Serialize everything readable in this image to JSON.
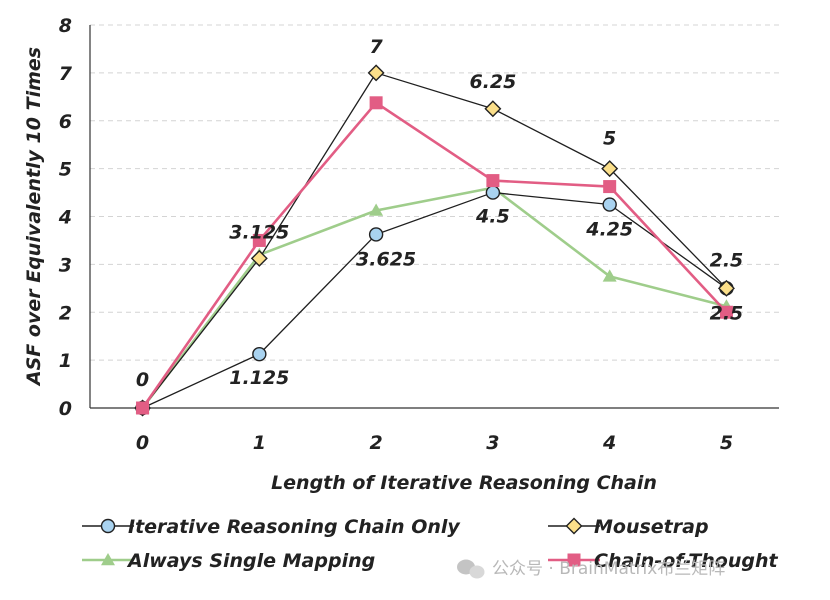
{
  "chart_data": {
    "type": "line",
    "title": "",
    "xlabel": "Length of Iterative Reasoning Chain",
    "ylabel": "ASF over  Equivalently 10 Times",
    "x": [
      0,
      1,
      2,
      3,
      4,
      5
    ],
    "xticks": [
      "0",
      "1",
      "2",
      "3",
      "4",
      "5"
    ],
    "yticks": [
      "0",
      "1",
      "2",
      "3",
      "4",
      "5",
      "6",
      "7",
      "8"
    ],
    "xlim": [
      -0.45,
      5.45
    ],
    "ylim": [
      0,
      8
    ],
    "grid": "horizontal dashed",
    "legend_position": "bottom",
    "series": [
      {
        "name": "Iterative Reasoning Chain Only",
        "values": [
          0,
          1.125,
          3.625,
          4.5,
          4.25,
          2.5
        ],
        "color": "#1f1f1f",
        "marker": "circle",
        "marker_fill": "#a9d3f0"
      },
      {
        "name": "Mousetrap",
        "values": [
          0,
          3.125,
          7,
          6.25,
          5,
          2.5
        ],
        "color": "#1f1f1f",
        "marker": "diamond",
        "marker_fill": "#fbdf8a"
      },
      {
        "name": "Always Single Mapping",
        "values": [
          0,
          3.2,
          4.125,
          4.6,
          2.75,
          2.125
        ],
        "color": "#9fcd8b",
        "marker": "triangle",
        "marker_fill": "#9fcd8b"
      },
      {
        "name": "Chain-of-Thought",
        "values": [
          0,
          3.5,
          6.375,
          4.75,
          4.625,
          2.0
        ],
        "color": "#e25d84",
        "marker": "square",
        "marker_fill": "#e25d84"
      }
    ],
    "annotations": [
      {
        "text": "0",
        "x": 0,
        "y": 0
      },
      {
        "text": "1.125",
        "x": 1,
        "y": 1.125
      },
      {
        "text": "3.125",
        "x": 1,
        "y": 3.125
      },
      {
        "text": "7",
        "x": 2,
        "y": 7
      },
      {
        "text": "3.625",
        "x": 2,
        "y": 3.625
      },
      {
        "text": "6.25",
        "x": 3,
        "y": 6.25
      },
      {
        "text": "4.5",
        "x": 3,
        "y": 4.5
      },
      {
        "text": "5",
        "x": 4,
        "y": 5
      },
      {
        "text": "4.25",
        "x": 4,
        "y": 4.25
      },
      {
        "text": "2.5",
        "x": 5,
        "y": 2.5
      },
      {
        "text": "2.5",
        "x": 5,
        "y": 2.5
      }
    ]
  },
  "watermark": "公众号 · BrainMatrix布兰矩阵"
}
